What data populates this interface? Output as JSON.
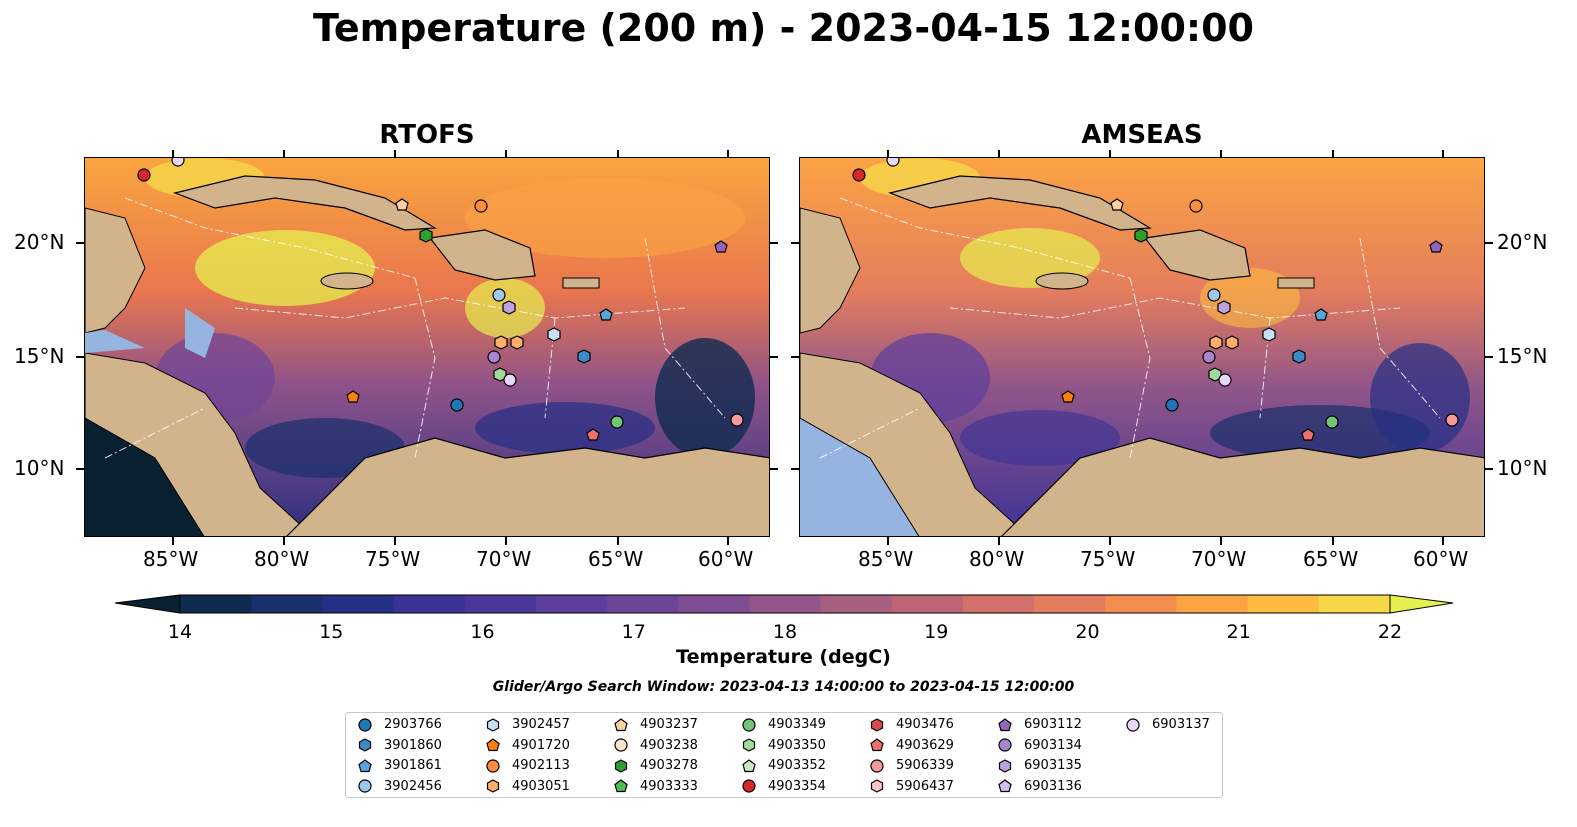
{
  "title": "Temperature (200 m) - 2023-04-15 12:00:00",
  "panels": [
    {
      "title": "RTOFS"
    },
    {
      "title": "AMSEAS"
    }
  ],
  "lon_ticks": [
    "85°W",
    "80°W",
    "75°W",
    "70°W",
    "65°W",
    "60°W"
  ],
  "lat_ticks": [
    "20°N",
    "15°N",
    "10°N"
  ],
  "colorbar": {
    "label": "Temperature (degC)",
    "min": 14,
    "max": 22,
    "ticks": [
      "14",
      "15",
      "16",
      "17",
      "18",
      "19",
      "20",
      "21",
      "22"
    ],
    "colors": [
      "#08202f",
      "#0f2a50",
      "#1a2f6b",
      "#252f86",
      "#3b3296",
      "#4b379c",
      "#5c3e9c",
      "#6d4598",
      "#7e4d92",
      "#925689",
      "#a75f80",
      "#bd6575",
      "#d2706a",
      "#e47d5d",
      "#f28f4f",
      "#fba444",
      "#fdbb3f",
      "#f6d747",
      "#e5f04f"
    ]
  },
  "search_window": "Glider/Argo Search Window: 2023-04-13 14:00:00 to 2023-04-15 12:00:00",
  "legend": [
    {
      "label": "2903766",
      "color": "#1f77b4",
      "marker": "circle"
    },
    {
      "label": "3901860",
      "color": "#3a8cc4",
      "marker": "hexagon"
    },
    {
      "label": "3901861",
      "color": "#56a5dc",
      "marker": "pentagon"
    },
    {
      "label": "3902456",
      "color": "#9ec9ee",
      "marker": "circle"
    },
    {
      "label": "3902457",
      "color": "#c6e0f7",
      "marker": "hexagon"
    },
    {
      "label": "4901720",
      "color": "#ff7f0e",
      "marker": "pentagon"
    },
    {
      "label": "4902113",
      "color": "#fd8d3c",
      "marker": "circle"
    },
    {
      "label": "4903051",
      "color": "#fdae6b",
      "marker": "hexagon"
    },
    {
      "label": "4903237",
      "color": "#fdd0a2",
      "marker": "pentagon"
    },
    {
      "label": "4903238",
      "color": "#fee6ce",
      "marker": "circle"
    },
    {
      "label": "4903278",
      "color": "#2ca02c",
      "marker": "hexagon"
    },
    {
      "label": "4903333",
      "color": "#4fbf4f",
      "marker": "pentagon"
    },
    {
      "label": "4903349",
      "color": "#74c476",
      "marker": "circle"
    },
    {
      "label": "4903350",
      "color": "#a1d99b",
      "marker": "hexagon"
    },
    {
      "label": "4903352",
      "color": "#c7e9c0",
      "marker": "pentagon"
    },
    {
      "label": "4903354",
      "color": "#d62728",
      "marker": "circle"
    },
    {
      "label": "4903476",
      "color": "#de4a4a",
      "marker": "hexagon"
    },
    {
      "label": "4903629",
      "color": "#ef6e6e",
      "marker": "pentagon"
    },
    {
      "label": "5906339",
      "color": "#f59a9a",
      "marker": "circle"
    },
    {
      "label": "5906437",
      "color": "#f9c6c6",
      "marker": "hexagon"
    },
    {
      "label": "6903112",
      "color": "#9467bd",
      "marker": "pentagon"
    },
    {
      "label": "6903134",
      "color": "#a985d0",
      "marker": "circle"
    },
    {
      "label": "6903135",
      "color": "#bca2de",
      "marker": "hexagon"
    },
    {
      "label": "6903136",
      "color": "#d2bdee",
      "marker": "pentagon"
    },
    {
      "label": "6903137",
      "color": "#e6d8f7",
      "marker": "circle"
    }
  ],
  "colors": {
    "land": "#d2b48c",
    "shelf": "#95b5e0",
    "warm": "#e5f04f",
    "mid": "#9b5a8a",
    "cold": "#1a2f6b"
  }
}
